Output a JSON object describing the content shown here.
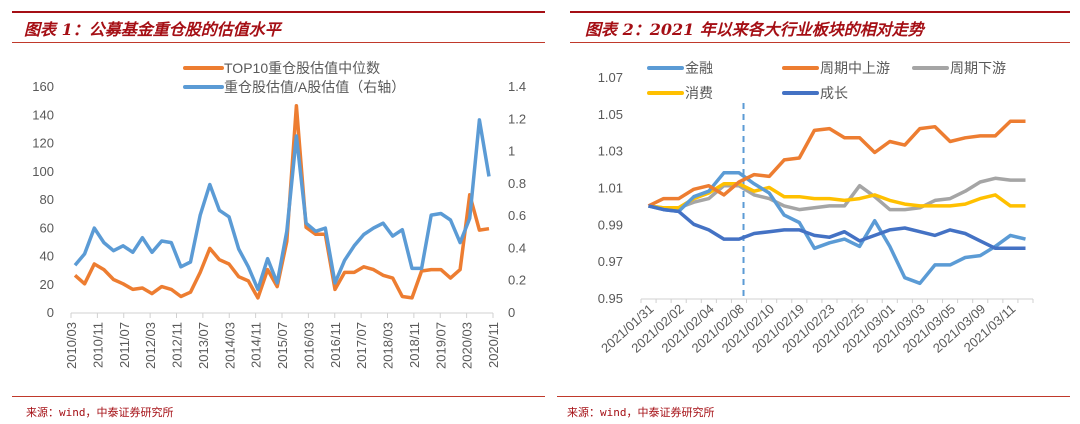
{
  "panels": [
    {
      "title": "图表 1：公募基金重仓股的估值水平",
      "source": "来源：wind，中泰证券研究所"
    },
    {
      "title": "图表 2：2021 年以来各大行业板块的相对走势",
      "source": "来源：wind，中泰证券研究所"
    }
  ],
  "chart_data": [
    {
      "type": "line",
      "title": "公募基金重仓股的估值水平",
      "x_tick_labels": [
        "2010/03",
        "2010/11",
        "2011/07",
        "2012/03",
        "2012/11",
        "2013/07",
        "2014/03",
        "2014/11",
        "2015/07",
        "2016/03",
        "2016/11",
        "2017/07",
        "2018/03",
        "2018/11",
        "2019/07",
        "2020/03",
        "2020/11"
      ],
      "x_tick_every": 8,
      "y_left": {
        "ticks": [
          "0",
          "20",
          "40",
          "60",
          "80",
          "100",
          "120",
          "140",
          "160"
        ],
        "range": [
          0,
          160
        ]
      },
      "y_right": {
        "ticks": [
          "0",
          "0.2",
          "0.4",
          "0.6",
          "0.8",
          "1",
          "1.2",
          "1.4"
        ],
        "range": [
          0,
          1.4
        ]
      },
      "legend_position": "top-center",
      "series": [
        {
          "name": "TOP10重仓股估值中位数",
          "axis": "left",
          "color": "#ED7D31",
          "values": [
            26,
            20,
            34,
            30,
            23,
            20,
            16,
            17,
            13,
            18,
            16,
            11,
            14,
            28,
            45,
            37,
            34,
            25,
            22,
            10,
            30,
            18,
            50,
            146,
            60,
            55,
            55,
            16,
            28,
            28,
            32,
            30,
            26,
            24,
            11,
            10,
            29,
            30,
            30,
            24,
            30,
            83,
            58,
            59
          ]
        },
        {
          "name": "重仓股估值/A股估值（右轴）",
          "axis": "right",
          "color": "#5B9BD5",
          "values": [
            0.29,
            0.36,
            0.52,
            0.43,
            0.38,
            0.41,
            0.37,
            0.46,
            0.37,
            0.44,
            0.43,
            0.28,
            0.31,
            0.6,
            0.79,
            0.63,
            0.59,
            0.39,
            0.28,
            0.14,
            0.33,
            0.18,
            0.5,
            1.09,
            0.55,
            0.5,
            0.52,
            0.18,
            0.32,
            0.41,
            0.48,
            0.52,
            0.55,
            0.47,
            0.51,
            0.27,
            0.27,
            0.6,
            0.61,
            0.57,
            0.43,
            0.58,
            1.19,
            0.84
          ]
        }
      ]
    },
    {
      "type": "line",
      "title": "2021 年以来各大行业板块的相对走势",
      "x_tick_labels": [
        "2021/01/31",
        "2021/02/02",
        "2021/02/04",
        "2021/02/08",
        "2021/02/10",
        "2021/02/19",
        "2021/02/23",
        "2021/02/25",
        "2021/03/01",
        "2021/03/03",
        "2021/03/05",
        "2021/03/09",
        "2021/03/11"
      ],
      "x_tick_every": 2,
      "y": {
        "ticks": [
          "0.95",
          "0.97",
          "0.99",
          "1.01",
          "1.03",
          "1.05",
          "1.07"
        ],
        "range": [
          0.95,
          1.07
        ]
      },
      "vertical_marker_index": 6.3,
      "legend_position": "top",
      "series": [
        {
          "name": "金融",
          "color": "#5B9BD5",
          "values": [
            1.0,
            0.998,
            0.997,
            1.005,
            1.008,
            1.018,
            1.018,
            1.012,
            1.007,
            0.995,
            0.991,
            0.977,
            0.98,
            0.982,
            0.978,
            0.992,
            0.978,
            0.961,
            0.958,
            0.968,
            0.968,
            0.972,
            0.973,
            0.978,
            0.984,
            0.982
          ]
        },
        {
          "name": "周期中上游",
          "color": "#ED7D31",
          "values": [
            1.0,
            1.004,
            1.004,
            1.009,
            1.011,
            1.006,
            1.013,
            1.017,
            1.016,
            1.025,
            1.026,
            1.041,
            1.042,
            1.037,
            1.037,
            1.029,
            1.035,
            1.033,
            1.042,
            1.043,
            1.035,
            1.037,
            1.038,
            1.038,
            1.046,
            1.046
          ]
        },
        {
          "name": "周期下游",
          "color": "#A5A5A5",
          "values": [
            1.0,
            0.999,
            0.999,
            1.002,
            1.004,
            1.011,
            1.011,
            1.006,
            1.004,
            1.0,
            0.998,
            0.999,
            1.0,
            1.0,
            1.011,
            1.005,
            0.998,
            0.998,
            0.999,
            1.003,
            1.004,
            1.008,
            1.013,
            1.015,
            1.014,
            1.014
          ]
        },
        {
          "name": "消费",
          "color": "#FFC000",
          "values": [
            1.0,
            0.999,
            0.999,
            1.004,
            1.007,
            1.012,
            1.012,
            1.008,
            1.01,
            1.005,
            1.005,
            1.004,
            1.004,
            1.003,
            1.004,
            1.006,
            1.003,
            1.001,
            1.0,
            1.0,
            1.0,
            1.001,
            1.004,
            1.006,
            1.0,
            1.0
          ]
        },
        {
          "name": "成长",
          "color": "#4472C4",
          "values": [
            1.0,
            0.998,
            0.997,
            0.99,
            0.987,
            0.982,
            0.982,
            0.985,
            0.986,
            0.987,
            0.987,
            0.984,
            0.983,
            0.986,
            0.981,
            0.984,
            0.987,
            0.988,
            0.986,
            0.984,
            0.987,
            0.985,
            0.981,
            0.977,
            0.977,
            0.977
          ]
        }
      ]
    }
  ]
}
